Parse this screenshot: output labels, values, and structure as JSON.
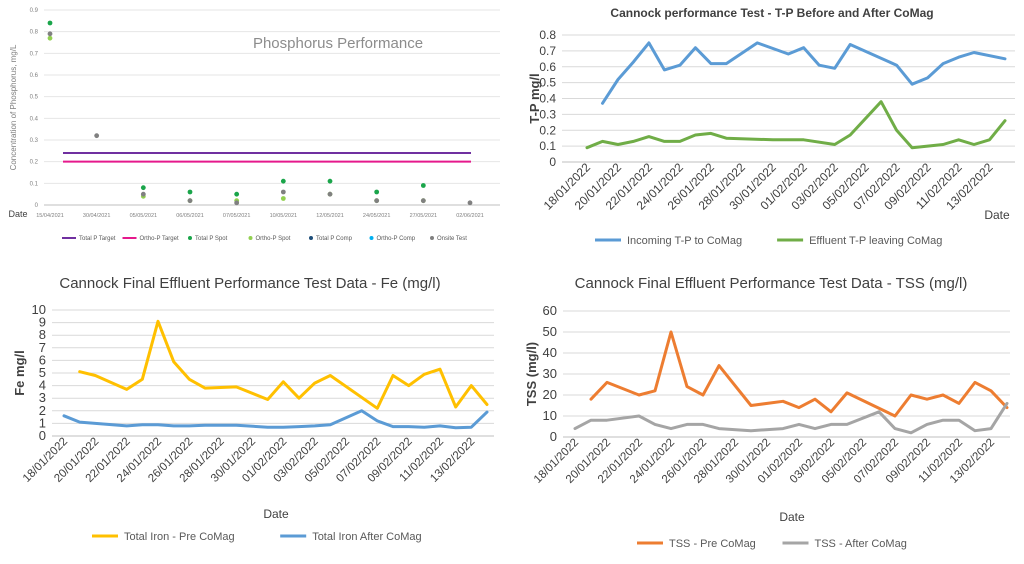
{
  "chart_data": [
    {
      "id": "phosphorus",
      "type": "scatter",
      "title": "Phosphorus Performance",
      "xlabel": "Date",
      "ylabel": "Concentration of Phosphorus, mg/L",
      "ylim": [
        0,
        0.9
      ],
      "yticks": [
        "0",
        "0.1",
        "0.2",
        "0.3",
        "0.4",
        "0.5",
        "0.6",
        "0.7",
        "0.8",
        "0.9"
      ],
      "categories": [
        "15/04/2021",
        "30/04/2021",
        "05/05/2021",
        "06/05/2021",
        "07/05/2021",
        "10/05/2021",
        "12/05/2021",
        "24/05/2021",
        "27/05/2021",
        "02/06/2021"
      ],
      "lines": [
        {
          "name": "Total P Target",
          "value": 0.24,
          "color": "#7030a0"
        },
        {
          "name": "Ortho-P Target",
          "value": 0.2,
          "color": "#e5198c"
        }
      ],
      "series": [
        {
          "name": "Total P Spot",
          "color": "#1aa54a",
          "values": [
            0.84,
            null,
            0.08,
            0.06,
            0.05,
            0.11,
            0.11,
            0.06,
            0.09,
            null
          ]
        },
        {
          "name": "Ortho-P Spot",
          "color": "#92d050",
          "values": [
            0.77,
            null,
            0.04,
            0.02,
            0.02,
            0.03,
            0.05,
            0.02,
            0.02,
            null
          ]
        },
        {
          "name": "Total P Comp",
          "color": "#1f4e79",
          "values": [
            null,
            null,
            null,
            null,
            null,
            null,
            null,
            null,
            null,
            null
          ]
        },
        {
          "name": "Ortho-P Comp",
          "color": "#00b0f0",
          "values": [
            null,
            null,
            null,
            null,
            null,
            null,
            null,
            null,
            null,
            null
          ]
        },
        {
          "name": "Onsite Test",
          "color": "#808080",
          "values": [
            0.79,
            0.32,
            0.05,
            0.02,
            0.01,
            0.06,
            0.05,
            0.02,
            0.02,
            0.01
          ]
        }
      ],
      "legend": "bottom"
    },
    {
      "id": "tp",
      "type": "line",
      "title": "Cannock performance Test - T-P Before and After CoMag",
      "xlabel": "Date",
      "ylabel": "T-P mg/l",
      "ylim": [
        0,
        0.8
      ],
      "yticks": [
        "0",
        "0.1",
        "0.2",
        "0.3",
        "0.4",
        "0.5",
        "0.6",
        "0.7",
        "0.8"
      ],
      "x": [
        "18/01/2022",
        "19/01/2022",
        "20/01/2022",
        "21/01/2022",
        "22/01/2022",
        "23/01/2022",
        "24/01/2022",
        "25/01/2022",
        "26/01/2022",
        "27/01/2022",
        "28/01/2022",
        "29/01/2022",
        "30/01/2022",
        "31/01/2022",
        "01/02/2022",
        "02/02/2022",
        "03/02/2022",
        "04/02/2022",
        "05/02/2022",
        "06/02/2022",
        "07/02/2022",
        "08/02/2022",
        "09/02/2022",
        "10/02/2022",
        "11/02/2022",
        "12/02/2022",
        "13/02/2022",
        "14/02/2022"
      ],
      "xticks": [
        "18/01/2022",
        "20/01/2022",
        "22/01/2022",
        "24/01/2022",
        "26/01/2022",
        "28/01/2022",
        "30/01/2022",
        "01/02/2022",
        "03/02/2022",
        "05/02/2022",
        "07/02/2022",
        "09/02/2022",
        "11/02/2022",
        "13/02/2022"
      ],
      "series": [
        {
          "name": "Incoming T-P to CoMag",
          "color": "#5b9bd5",
          "values": [
            null,
            0.37,
            0.52,
            0.63,
            0.75,
            0.58,
            0.61,
            0.72,
            0.62,
            0.62,
            null,
            0.75,
            null,
            0.68,
            0.72,
            0.61,
            0.59,
            0.74,
            null,
            null,
            0.61,
            0.49,
            0.53,
            0.62,
            0.66,
            0.69,
            null,
            0.65
          ]
        },
        {
          "name": "Effluent T-P leaving CoMag",
          "color": "#70ad47",
          "values": [
            0.09,
            0.13,
            0.11,
            0.13,
            0.16,
            0.13,
            0.13,
            0.17,
            0.18,
            0.15,
            null,
            null,
            0.14,
            null,
            0.14,
            null,
            0.11,
            0.17,
            null,
            0.38,
            0.2,
            0.09,
            0.1,
            0.11,
            0.14,
            0.11,
            0.14,
            0.26
          ]
        }
      ],
      "legend": "bottom"
    },
    {
      "id": "fe",
      "type": "line",
      "title": "Cannock Final Effluent Performance Test Data - Fe (mg/l)",
      "xlabel": "Date",
      "ylabel": "Fe mg/l",
      "ylim": [
        0,
        10
      ],
      "yticks": [
        "0",
        "1",
        "2",
        "3",
        "4",
        "5",
        "6",
        "7",
        "8",
        "9",
        "10"
      ],
      "x": [
        "18/01/2022",
        "19/01/2022",
        "20/01/2022",
        "21/01/2022",
        "22/01/2022",
        "23/01/2022",
        "24/01/2022",
        "25/01/2022",
        "26/01/2022",
        "27/01/2022",
        "28/01/2022",
        "29/01/2022",
        "30/01/2022",
        "31/01/2022",
        "01/02/2022",
        "02/02/2022",
        "03/02/2022",
        "04/02/2022",
        "05/02/2022",
        "06/02/2022",
        "07/02/2022",
        "08/02/2022",
        "09/02/2022",
        "10/02/2022",
        "11/02/2022",
        "12/02/2022",
        "13/02/2022",
        "14/02/2022"
      ],
      "xticks": [
        "18/01/2022",
        "20/01/2022",
        "22/01/2022",
        "24/01/2022",
        "26/01/2022",
        "28/01/2022",
        "30/01/2022",
        "01/02/2022",
        "03/02/2022",
        "05/02/2022",
        "07/02/2022",
        "09/02/2022",
        "11/02/2022",
        "13/02/2022"
      ],
      "series": [
        {
          "name": "Total Iron - Pre CoMag",
          "color": "#ffc000",
          "values": [
            null,
            5.1,
            4.8,
            null,
            3.7,
            4.5,
            9.1,
            5.9,
            4.5,
            3.8,
            null,
            3.9,
            null,
            2.9,
            4.3,
            3.0,
            4.2,
            4.8,
            null,
            null,
            2.2,
            4.8,
            4.0,
            4.9,
            5.3,
            2.3,
            4.0,
            2.5
          ]
        },
        {
          "name": "Total Iron After CoMag",
          "color": "#5b9bd5",
          "values": [
            1.6,
            1.1,
            1.0,
            null,
            0.8,
            0.9,
            0.9,
            0.8,
            0.8,
            0.85,
            null,
            0.85,
            null,
            0.7,
            0.7,
            0.75,
            0.8,
            0.9,
            null,
            2.0,
            1.2,
            0.75,
            0.75,
            0.7,
            0.8,
            0.65,
            0.7,
            1.9
          ]
        }
      ],
      "legend": "bottom"
    },
    {
      "id": "tss",
      "type": "line",
      "title": "Cannock Final Effluent Performance Test Data - TSS (mg/l)",
      "xlabel": "Date",
      "ylabel": "TSS (mg/l)",
      "ylim": [
        0,
        60
      ],
      "yticks": [
        "0",
        "10",
        "20",
        "30",
        "40",
        "50",
        "60"
      ],
      "x": [
        "18/01/2022",
        "19/01/2022",
        "20/01/2022",
        "21/01/2022",
        "22/01/2022",
        "23/01/2022",
        "24/01/2022",
        "25/01/2022",
        "26/01/2022",
        "27/01/2022",
        "28/01/2022",
        "29/01/2022",
        "30/01/2022",
        "31/01/2022",
        "01/02/2022",
        "02/02/2022",
        "03/02/2022",
        "04/02/2022",
        "05/02/2022",
        "06/02/2022",
        "07/02/2022",
        "08/02/2022",
        "09/02/2022",
        "10/02/2022",
        "11/02/2022",
        "12/02/2022",
        "13/02/2022",
        "14/02/2022"
      ],
      "xticks": [
        "18/01/2022",
        "20/01/2022",
        "22/01/2022",
        "24/01/2022",
        "26/01/2022",
        "28/01/2022",
        "30/01/2022",
        "01/02/2022",
        "03/02/2022",
        "05/02/2022",
        "07/02/2022",
        "09/02/2022",
        "11/02/2022",
        "13/02/2022"
      ],
      "series": [
        {
          "name": "TSS - Pre CoMag",
          "color": "#ed7d31",
          "values": [
            null,
            18,
            26,
            null,
            20,
            22,
            50,
            24,
            20,
            34,
            null,
            15,
            null,
            17,
            14,
            18,
            12,
            21,
            null,
            null,
            10,
            20,
            18,
            20,
            16,
            26,
            22,
            14
          ]
        },
        {
          "name": "TSS - After CoMag",
          "color": "#a5a5a5",
          "values": [
            4,
            8,
            8,
            null,
            10,
            6,
            4,
            6,
            6,
            4,
            null,
            3,
            null,
            4,
            6,
            4,
            6,
            6,
            null,
            12,
            4,
            2,
            6,
            8,
            8,
            3,
            4,
            16
          ]
        }
      ],
      "legend": "bottom"
    }
  ]
}
